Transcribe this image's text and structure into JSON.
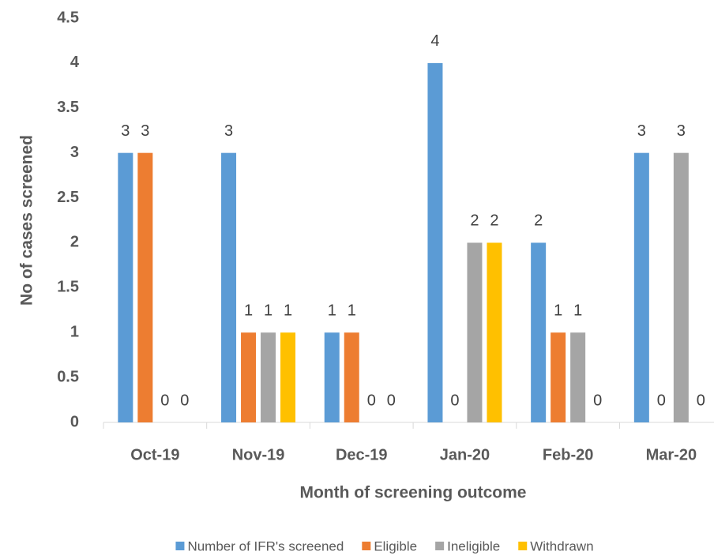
{
  "chart_data": {
    "type": "bar",
    "x_label": "Month of screening outcome",
    "y_label": "No of cases screened",
    "categories": [
      "Oct-19",
      "Nov-19",
      "Dec-19",
      "Jan-20",
      "Feb-20",
      "Mar-20"
    ],
    "series": [
      {
        "name": "Number of IFR's screened",
        "color": "#5b9bd5",
        "values": [
          3,
          3,
          1,
          4,
          2,
          3
        ]
      },
      {
        "name": "Eligible",
        "color": "#ed7d31",
        "values": [
          3,
          1,
          1,
          0,
          1,
          0
        ]
      },
      {
        "name": "Ineligible",
        "color": "#a5a5a5",
        "values": [
          0,
          1,
          0,
          2,
          1,
          3
        ]
      },
      {
        "name": "Withdrawn",
        "color": "#ffc000",
        "values": [
          0,
          1,
          0,
          2,
          0,
          0
        ]
      }
    ],
    "ylim": [
      0,
      4.5
    ],
    "yticks": [
      0,
      0.5,
      1,
      1.5,
      2,
      2.5,
      3,
      3.5,
      4,
      4.5
    ],
    "grid": false,
    "legend": "bottom",
    "data_labels": true
  }
}
